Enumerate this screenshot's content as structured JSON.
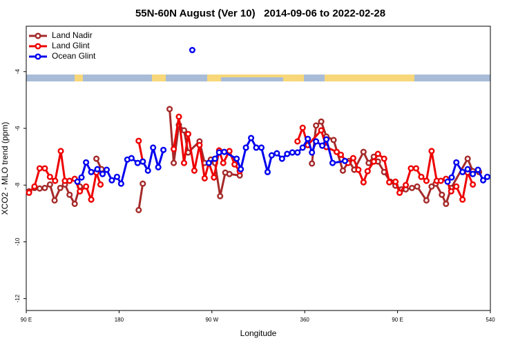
{
  "chart_data": {
    "type": "line",
    "title": "55N-60N August (Ver 10)   2014-09-06 to 2022-02-28",
    "x_label": "Longitude",
    "y_label": "XCO2 - MLO trend (ppm)",
    "xlim": [
      90,
      540
    ],
    "ylim": [
      -12.42,
      -2.4
    ],
    "xticks": [
      {
        "value": 90,
        "label": "90 E"
      },
      180,
      {
        "value": 270,
        "label": "90 W"
      },
      360,
      {
        "value": 450,
        "label": "90 E"
      },
      540
    ],
    "yticks": [
      -4,
      -6,
      -8,
      -10,
      -12
    ],
    "legend": "top-left",
    "series": [
      {
        "name": "Land Nadir",
        "color": "#a52a2a",
        "x": [
          92.7,
          98,
          103,
          108,
          113,
          117.5,
          123,
          127.5,
          132,
          137,
          142,
          null,
          158,
          163,
          null,
          199,
          203,
          null,
          229,
          233,
          238,
          243,
          247,
          258,
          263,
          269,
          273,
          278,
          283,
          287,
          297,
          null,
          367,
          371,
          376,
          381,
          388,
          397,
          403,
          408,
          417,
          422,
          427,
          431,
          437,
          443,
          448,
          454,
          458,
          464,
          469,
          478,
          483,
          487,
          493,
          497,
          502,
          518,
          523,
          529
        ],
        "values": [
          -8.22,
          -8.1,
          -8.12,
          -8.1,
          -7.98,
          -8.54,
          -8.1,
          -7.98,
          -8.34,
          -8.66,
          -8.05,
          null,
          -7.07,
          -7.44,
          null,
          -8.88,
          -7.95,
          null,
          -5.32,
          -7.22,
          -5.88,
          -6.07,
          -6.85,
          -6.46,
          -7.22,
          -7.1,
          -7.22,
          -8.39,
          -7.56,
          -7.61,
          -7.66,
          null,
          -7.24,
          -5.9,
          -5.76,
          -6.29,
          -6.41,
          -7.49,
          -7.15,
          -7.46,
          -6.83,
          -7.22,
          -7.0,
          -7.17,
          -7.54,
          -7.88,
          -8.02,
          -8.15,
          -8.15,
          -8.1,
          -8.05,
          -8.54,
          -8.05,
          -7.95,
          -8.34,
          -8.66,
          -8.1,
          -7.07,
          -7.51,
          -7.54
        ]
      },
      {
        "name": "Land Glint",
        "color": "#ee0000",
        "x": [
          92.7,
          98,
          103,
          108,
          113,
          118,
          123.5,
          127.5,
          132,
          137,
          142,
          148,
          153,
          158,
          162,
          null,
          199,
          203,
          null,
          233,
          238,
          243,
          247,
          253,
          258,
          263,
          267,
          272,
          277,
          281,
          287,
          292,
          297,
          null,
          353,
          358,
          363,
          376,
          381,
          391,
          395,
          402,
          407,
          412,
          417,
          421,
          427,
          431,
          437,
          442,
          448,
          452,
          458,
          463,
          468,
          473,
          478,
          483,
          488,
          492,
          497,
          502,
          507,
          513,
          518,
          523
        ],
        "values": [
          -8.27,
          -8.05,
          -7.41,
          -7.41,
          -7.71,
          -7.85,
          -6.8,
          -7.85,
          -7.85,
          -7.78,
          -8.22,
          -8.05,
          -8.51,
          -7.56,
          -7.98,
          null,
          -6.44,
          -7.17,
          null,
          -6.73,
          -5.59,
          -7.22,
          -6.2,
          -7.49,
          -6.59,
          -7.76,
          -7.22,
          -7.73,
          -6.78,
          -7.22,
          -6.8,
          -7.27,
          -7.51,
          null,
          -6.46,
          -5.98,
          -6.59,
          -6.07,
          -6.66,
          -6.83,
          -6.93,
          -7.22,
          -7.05,
          -7.46,
          -7.9,
          -7.51,
          -7.17,
          -6.9,
          -7.07,
          -7.9,
          -7.88,
          -8.27,
          -8.0,
          -7.41,
          -7.41,
          -7.71,
          -7.85,
          -6.8,
          -7.85,
          -7.85,
          -7.78,
          -8.22,
          -8.05,
          -8.51,
          -7.56,
          -7.98
        ]
      },
      {
        "name": "Ocean Glint",
        "color": "#0000ee",
        "x": [
          139.6,
          143.6,
          148,
          153,
          159,
          164,
          168,
          173,
          178,
          182,
          188,
          192,
          198,
          203,
          208,
          213,
          218,
          223,
          null,
          251,
          null,
          267,
          273,
          277,
          282,
          294,
          298,
          303,
          308,
          313,
          318,
          324,
          328,
          333,
          338,
          343,
          348,
          353,
          358,
          363,
          367,
          371,
          377,
          381,
          387,
          399,
          null,
          498.5,
          502.5,
          507,
          513,
          518,
          523,
          528,
          533,
          537
        ],
        "values": [
          -7.88,
          -7.73,
          -7.2,
          -7.54,
          -7.44,
          -7.61,
          -7.46,
          -7.83,
          -7.71,
          -7.95,
          -7.1,
          -7.05,
          -7.22,
          -7.17,
          -7.49,
          -6.68,
          -7.37,
          -6.76,
          null,
          -3.24,
          null,
          -7.22,
          -7.07,
          -6.85,
          -6.83,
          -7.07,
          -7.44,
          -6.68,
          -6.34,
          -6.68,
          -6.68,
          -7.54,
          -6.95,
          -6.88,
          -7.07,
          -6.9,
          -6.85,
          -6.85,
          -6.68,
          -6.37,
          -6.85,
          -6.46,
          -6.61,
          -6.39,
          -7.22,
          -7.15,
          null,
          -7.88,
          -7.73,
          -7.2,
          -7.54,
          -7.44,
          -7.61,
          -7.46,
          -7.83,
          -7.71
        ]
      }
    ]
  }
}
